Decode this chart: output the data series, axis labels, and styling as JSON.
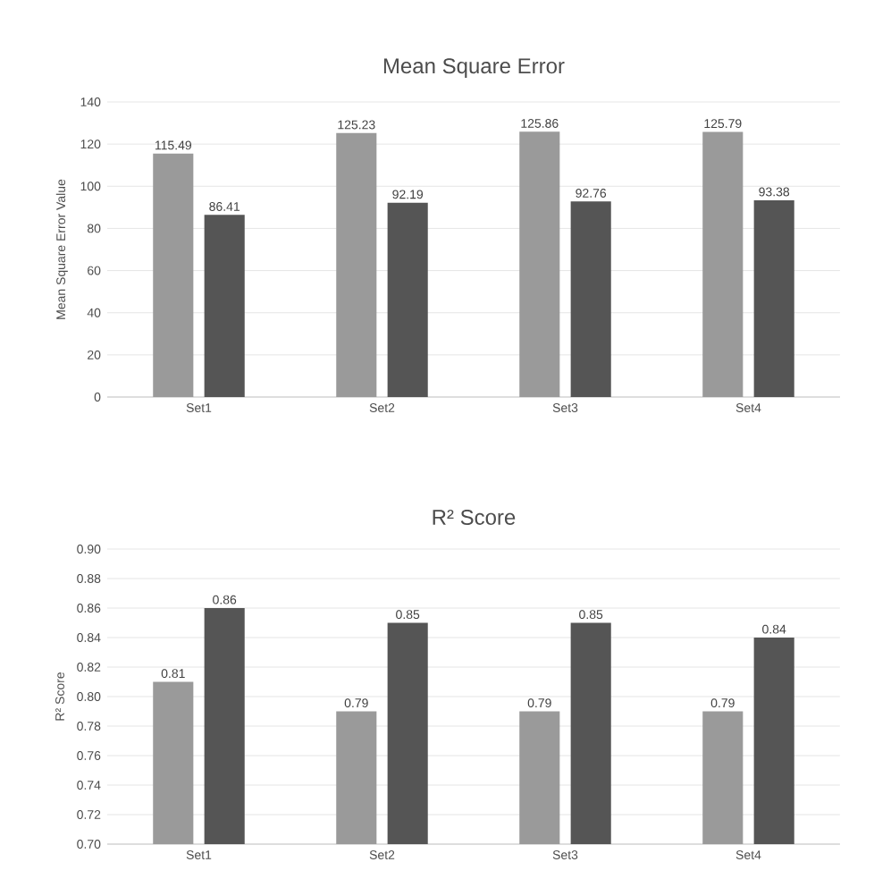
{
  "chart_data": [
    {
      "type": "bar",
      "title": "Mean Square Error",
      "ylabel": "Mean Square Error Value",
      "categories": [
        "Set1",
        "Set2",
        "Set3",
        "Set4"
      ],
      "series": [
        {
          "color": "#9a9a9a",
          "values": [
            115.49,
            125.23,
            125.86,
            125.79
          ]
        },
        {
          "color": "#555555",
          "values": [
            86.41,
            92.19,
            92.76,
            93.38
          ]
        }
      ],
      "ylim": [
        0,
        140
      ],
      "yticks": [
        0,
        20,
        40,
        60,
        80,
        100,
        120,
        140
      ],
      "grid": "y",
      "data_labels": true
    },
    {
      "type": "bar",
      "title": "R² Score",
      "ylabel": "R² Score",
      "categories": [
        "Set1",
        "Set2",
        "Set3",
        "Set4"
      ],
      "series": [
        {
          "color": "#9a9a9a",
          "values": [
            0.81,
            0.79,
            0.79,
            0.79
          ]
        },
        {
          "color": "#555555",
          "values": [
            0.86,
            0.85,
            0.85,
            0.84
          ]
        }
      ],
      "ylim": [
        0.7,
        0.9
      ],
      "yticks": [
        {
          "value": 0.7,
          "label": "0.70"
        },
        0.72,
        0.74,
        0.76,
        0.78,
        {
          "value": 0.8,
          "label": "0.80"
        },
        0.82,
        0.84,
        0.86,
        0.88,
        {
          "value": 0.9,
          "label": "0.90"
        }
      ],
      "grid": "y",
      "data_labels": true
    }
  ]
}
